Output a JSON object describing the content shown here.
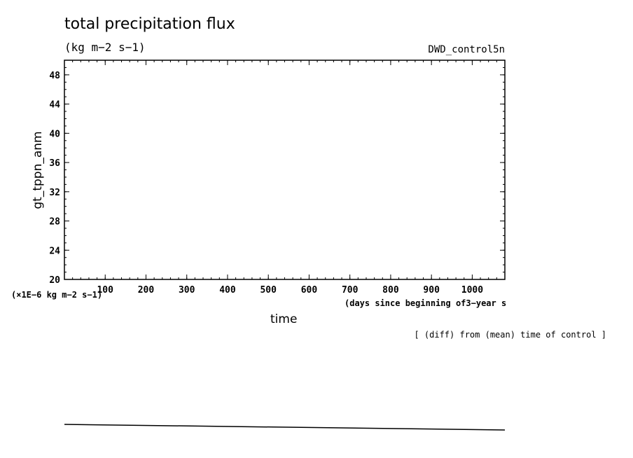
{
  "chart_data": {
    "type": "line",
    "title": "total precipitation flux",
    "units": "(kg m−2 s−1)",
    "run_label": "DWD_control5n",
    "ylabel": "gt_tppn_anm",
    "ylabel_scale": "(×1E−6 kg m−2 s−1)",
    "xlabel": "time",
    "xlabel_note": "(days since beginning of3−year s",
    "footnote": "[ (diff) from (mean) time of control ]",
    "xlim": [
      0,
      1080
    ],
    "ylim": [
      20,
      50
    ],
    "x_ticks": [
      100,
      200,
      300,
      400,
      500,
      600,
      700,
      800,
      900,
      1000
    ],
    "y_ticks": [
      20,
      24,
      28,
      32,
      36,
      40,
      44,
      48
    ],
    "grid": false,
    "series": [
      {
        "values": []
      }
    ]
  }
}
